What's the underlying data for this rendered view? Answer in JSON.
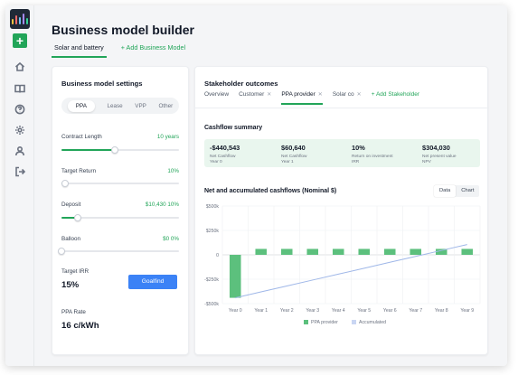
{
  "app": {
    "title": "Business model builder",
    "tabs": [
      {
        "label": "Solar and battery"
      }
    ],
    "add_tab_label": "+ Add Business Model"
  },
  "colors": {
    "accent": "#22a559",
    "bar": "#5cc07d",
    "line": "#9fb7e8",
    "summary_bg": "#e9f6ee",
    "button": "#3b82f6"
  },
  "sidebar": {
    "icons": [
      "app-logo-icon",
      "add-icon",
      "home-icon",
      "book-icon",
      "help-icon",
      "settings-icon",
      "user-icon",
      "logout-icon"
    ]
  },
  "settings": {
    "title": "Business model settings",
    "model_types": [
      "PPA",
      "Lease",
      "VPP",
      "Other"
    ],
    "selected_model": "PPA",
    "sliders": [
      {
        "label": "Contract Length",
        "value_text": "10 years",
        "value_fraction": 0.45
      },
      {
        "label": "Target Return",
        "value_text": "10%",
        "value_fraction": 0.03
      },
      {
        "label": "Deposit",
        "value_text": "$10,430  10%",
        "value_fraction": 0.14
      },
      {
        "label": "Balloon",
        "value_text": "$0  0%",
        "value_fraction": 0.0
      }
    ],
    "target_irr_label": "Target IRR",
    "target_irr_value": "15%",
    "goalfind_label": "Goalfind",
    "ppa_rate_label": "PPA Rate",
    "ppa_rate_value": "16 c/kWh"
  },
  "outcomes": {
    "title": "Stakeholder outcomes",
    "tabs": [
      "Overview",
      "Customer",
      "PPA provider",
      "Solar co"
    ],
    "active_tab": "PPA provider",
    "add_stakeholder_label": "+ Add Stakeholder",
    "cashflow_summary_title": "Cashflow summary",
    "summary": [
      {
        "value": "-$440,543",
        "label": "Net Cashflow\nYear 0"
      },
      {
        "value": "$60,640",
        "label": "Net Cashflow\nYear 1"
      },
      {
        "value": "10%",
        "label": "Return on investment\nIRR"
      },
      {
        "value": "$304,030",
        "label": "Net present value\nNPV"
      }
    ],
    "chart_title": "Net and accumulated cashflows (Nominal $)",
    "view_toggle": [
      "Data",
      "Chart"
    ],
    "view_selected": "Chart"
  },
  "chart_data": {
    "type": "bar",
    "title": "Net and accumulated cashflows (Nominal $)",
    "categories": [
      "Year 0",
      "Year 1",
      "Year 2",
      "Year 3",
      "Year 4",
      "Year 5",
      "Year 6",
      "Year 7",
      "Year 8",
      "Year 9"
    ],
    "yticks": [
      "$500k",
      "$250k",
      "0",
      "-$250k",
      "-$500k"
    ],
    "ylim": [
      -500000,
      500000
    ],
    "grid": true,
    "legend_position": "bottom",
    "series": [
      {
        "name": "PPA provider",
        "kind": "bar",
        "values": [
          -440543,
          60640,
          60640,
          60640,
          60640,
          60640,
          60640,
          60640,
          60640,
          60640
        ]
      },
      {
        "name": "Accumulated",
        "kind": "line",
        "values": [
          -440543,
          -379903,
          -319263,
          -258623,
          -197983,
          -137343,
          -76703,
          -16063,
          44577,
          105217
        ]
      }
    ]
  }
}
